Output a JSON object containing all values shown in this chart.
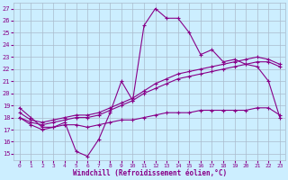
{
  "title": "",
  "xlabel": "Windchill (Refroidissement éolien,°C)",
  "bg_color": "#cceeff",
  "grid_color": "#aabbcc",
  "line_color": "#880088",
  "xlim": [
    -0.5,
    23.5
  ],
  "ylim": [
    14.5,
    27.5
  ],
  "xticks": [
    0,
    1,
    2,
    3,
    4,
    5,
    6,
    7,
    8,
    9,
    10,
    11,
    12,
    13,
    14,
    15,
    16,
    17,
    18,
    19,
    20,
    21,
    22,
    23
  ],
  "yticks": [
    15,
    16,
    17,
    18,
    19,
    20,
    21,
    22,
    23,
    24,
    25,
    26,
    27
  ],
  "curve1_x": [
    0,
    1,
    2,
    3,
    4,
    5,
    6,
    7,
    8,
    9,
    10,
    11,
    12,
    13,
    14,
    15,
    16,
    17,
    18,
    19,
    20,
    21,
    22,
    23
  ],
  "curve1_y": [
    18.8,
    18.0,
    17.2,
    17.2,
    17.6,
    15.2,
    14.8,
    16.2,
    18.4,
    21.0,
    19.4,
    25.6,
    27.0,
    26.2,
    26.2,
    25.0,
    23.2,
    23.6,
    22.6,
    22.8,
    22.4,
    22.2,
    21.0,
    18.0
  ],
  "curve2_x": [
    0,
    1,
    2,
    3,
    4,
    5,
    6,
    7,
    8,
    9,
    10,
    11,
    12,
    13,
    14,
    15,
    16,
    17,
    18,
    19,
    20,
    21,
    22,
    23
  ],
  "curve2_y": [
    18.0,
    17.4,
    17.0,
    17.2,
    17.4,
    17.4,
    17.2,
    17.4,
    17.6,
    17.8,
    17.8,
    18.0,
    18.2,
    18.4,
    18.4,
    18.4,
    18.6,
    18.6,
    18.6,
    18.6,
    18.6,
    18.8,
    18.8,
    18.2
  ],
  "curve3_x": [
    0,
    1,
    2,
    3,
    4,
    5,
    6,
    7,
    8,
    9,
    10,
    11,
    12,
    13,
    14,
    15,
    16,
    17,
    18,
    19,
    20,
    21,
    22,
    23
  ],
  "curve3_y": [
    18.0,
    17.6,
    17.4,
    17.6,
    17.8,
    18.0,
    18.0,
    18.2,
    18.6,
    19.0,
    19.4,
    20.0,
    20.4,
    20.8,
    21.2,
    21.4,
    21.6,
    21.8,
    22.0,
    22.2,
    22.4,
    22.6,
    22.6,
    22.2
  ],
  "curve4_x": [
    0,
    1,
    2,
    3,
    4,
    5,
    6,
    7,
    8,
    9,
    10,
    11,
    12,
    13,
    14,
    15,
    16,
    17,
    18,
    19,
    20,
    21,
    22,
    23
  ],
  "curve4_y": [
    18.4,
    17.8,
    17.6,
    17.8,
    18.0,
    18.2,
    18.2,
    18.4,
    18.8,
    19.2,
    19.6,
    20.2,
    20.8,
    21.2,
    21.6,
    21.8,
    22.0,
    22.2,
    22.4,
    22.6,
    22.8,
    23.0,
    22.8,
    22.4
  ]
}
